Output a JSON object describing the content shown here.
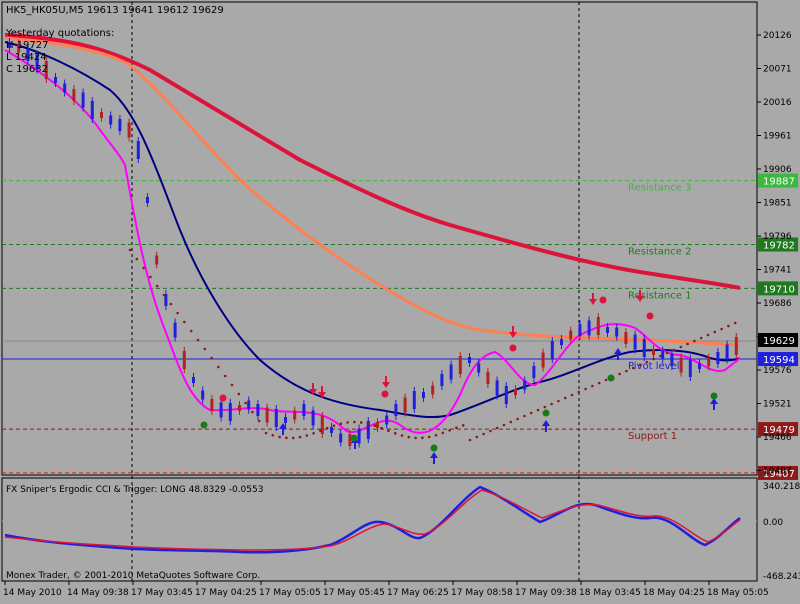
{
  "main_chart": {
    "header": "HK5_HK05U,M5  19613 19641 19612 19629",
    "yesterday_title": "Yesterday quotations:",
    "yesterday_high": "H 19727",
    "yesterday_low": "L 19424",
    "yesterday_close": "C 19632"
  },
  "price_axis": {
    "ticks": [
      "20126",
      "20071",
      "20016",
      "19961",
      "19906",
      "19851",
      "19796",
      "19741",
      "19686",
      "19629",
      "19576",
      "19521",
      "19466",
      "19407"
    ]
  },
  "level_lines": [
    {
      "name": "Resistance 3",
      "price": 19887,
      "label": "Resistance 3",
      "tag": "19887",
      "color": "#3cb83c",
      "style": "dashed"
    },
    {
      "name": "Resistance 2",
      "price": 19782,
      "label": "Resistance 2",
      "tag": "19782",
      "color": "#1f7a1f",
      "style": "dashed"
    },
    {
      "name": "Resistance 1",
      "price": 19710,
      "label": "Resistance 1",
      "tag": "19710",
      "color": "#1f7a1f",
      "style": "dashed"
    },
    {
      "name": "Pivot level",
      "price": 19594,
      "label": "Pivot level",
      "tag": "19594",
      "color": "#1f1fdc",
      "style": "solid"
    },
    {
      "name": "Support 1",
      "price": 19479,
      "label": "Support 1",
      "tag": "19479",
      "color": "#8b1a1a",
      "style": "dashed"
    },
    {
      "name": "Support 2",
      "price": 19407,
      "label": "",
      "tag": "19407",
      "color": "#cc2020",
      "style": "dashed"
    }
  ],
  "current_price": {
    "value": "19629",
    "bg": "#000000",
    "fg": "#ffffff"
  },
  "indicator": {
    "title": "FX Sniper's Ergodic CCI & Trigger: LONG 48.8329 -0.0553",
    "axis_top": "340.2181",
    "axis_mid": "0.00",
    "axis_bottom": "-468.2435",
    "copyright": "Monex Trader, © 2001-2010 MetaQuotes Software Corp."
  },
  "time_axis": {
    "labels": [
      "14 May 2010",
      "14 May 09:38",
      "17 May 03:45",
      "17 May 04:25",
      "17 May 05:05",
      "17 May 05:45",
      "17 May 06:25",
      "17 May 08:58",
      "17 May 09:38",
      "18 May 03:45",
      "18 May 04:25",
      "18 May 05:05"
    ]
  },
  "colors": {
    "background": "#a9a9a9",
    "ma_slow": "#dc143c",
    "ma_mid": "#ff7f50",
    "ma_fast": "#000080",
    "ma_fastest": "#ff00ff",
    "cci": "#1f1fdc",
    "trigger": "#dc143c",
    "bull": "#1f1fdc",
    "bear": "#b22222"
  }
}
